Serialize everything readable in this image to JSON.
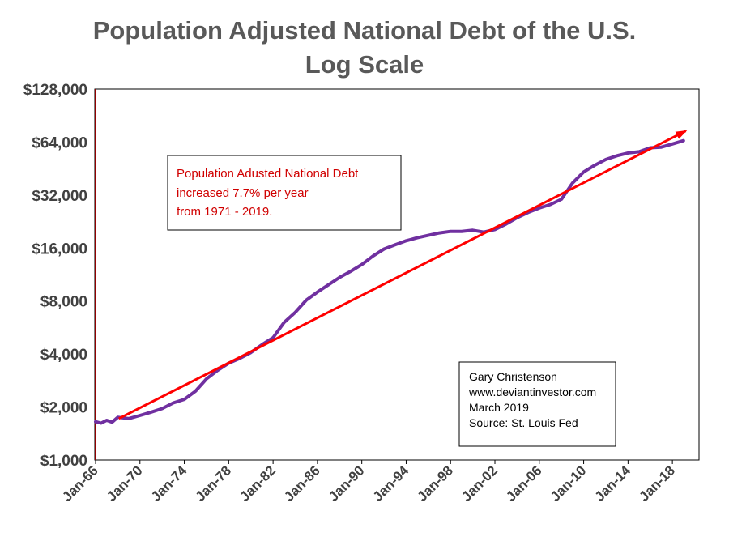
{
  "chart_data": {
    "type": "line",
    "title": "Population Adjusted National Debt of the U.S.",
    "subtitle": "Log Scale",
    "y_scale": "log2",
    "ylim": [
      1000,
      128000
    ],
    "y_tick_values": [
      1000,
      2000,
      4000,
      8000,
      16000,
      32000,
      64000,
      128000
    ],
    "y_tick_labels": [
      "$1,000",
      "$2,000",
      "$4,000",
      "$8,000",
      "$16,000",
      "$32,000",
      "$64,000",
      "$128,000"
    ],
    "xlim": [
      1966,
      2020.4
    ],
    "x_tick_values": [
      1966,
      1970,
      1974,
      1978,
      1982,
      1986,
      1990,
      1994,
      1998,
      2002,
      2006,
      2010,
      2014,
      2018
    ],
    "x_tick_labels": [
      "Jan-66",
      "Jan-70",
      "Jan-74",
      "Jan-78",
      "Jan-82",
      "Jan-86",
      "Jan-90",
      "Jan-94",
      "Jan-98",
      "Jan-02",
      "Jan-06",
      "Jan-10",
      "Jan-14",
      "Jan-18"
    ],
    "grid": false,
    "series": [
      {
        "color": "#7030a0",
        "x": [
          1966,
          1966.5,
          1967,
          1967.5,
          1968,
          1969,
          1970,
          1971,
          1972,
          1973,
          1974,
          1975,
          1976,
          1977,
          1978,
          1979,
          1980,
          1981,
          1982,
          1983,
          1984,
          1985,
          1986,
          1987,
          1988,
          1989,
          1990,
          1991,
          1992,
          1993,
          1994,
          1995,
          1996,
          1997,
          1998,
          1999,
          2000,
          2001,
          2002,
          2003,
          2004,
          2005,
          2006,
          2007,
          2008,
          2009,
          2010,
          2011,
          2012,
          2013,
          2014,
          2015,
          2016,
          2017,
          2018,
          2019
        ],
        "values": [
          1650,
          1620,
          1680,
          1640,
          1750,
          1720,
          1790,
          1870,
          1960,
          2110,
          2210,
          2460,
          2890,
          3230,
          3550,
          3780,
          4080,
          4520,
          4950,
          6050,
          6900,
          8100,
          9000,
          9900,
          10900,
          11800,
          12900,
          14400,
          15800,
          16700,
          17600,
          18300,
          18900,
          19500,
          19900,
          19900,
          20200,
          19700,
          20400,
          21900,
          23800,
          25500,
          27000,
          28300,
          30300,
          37500,
          43300,
          47300,
          51000,
          53500,
          55500,
          56400,
          59400,
          59900,
          62400,
          65200
        ]
      }
    ],
    "trend_line": {
      "color": "#ff0000",
      "x": [
        1968.1,
        2019.2
      ],
      "values": [
        1720,
        74000
      ]
    },
    "annotations": [
      {
        "lines": [
          "Population Adusted National Debt",
          "increased 7.7% per year",
          "from 1971 - 2019."
        ],
        "color": "#d00000"
      },
      {
        "lines": [
          "Gary Christenson",
          "www.deviantinvestor.com",
          "March 2019",
          "Source: St. Louis Fed"
        ],
        "color": "#000000"
      }
    ]
  }
}
